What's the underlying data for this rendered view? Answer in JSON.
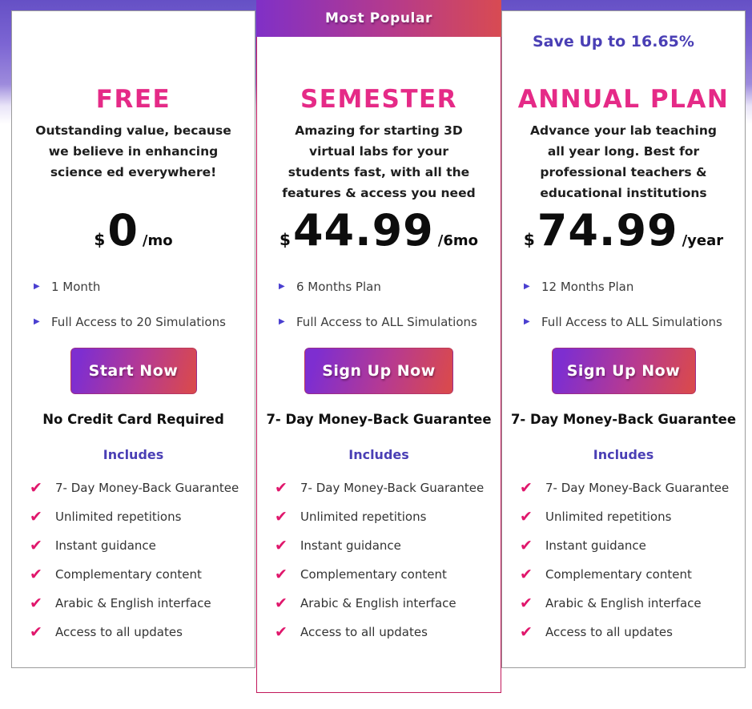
{
  "includes_heading": "Includes",
  "includes_items": [
    "7- Day Money-Back Guarantee",
    "Unlimited repetitions",
    "Instant guidance",
    "Complementary content",
    "Arabic & English interface",
    "Access to all updates"
  ],
  "plans": [
    {
      "id": "free",
      "title": "FREE",
      "description": "Outstanding value, because we believe in enhancing science ed everywhere!",
      "price": {
        "currency": "$",
        "amount": "0",
        "period": "/mo"
      },
      "features": [
        "1 Month",
        "Full Access to 20 Simulations"
      ],
      "cta_label": "Start Now",
      "note": "No Credit Card Required"
    },
    {
      "id": "semester",
      "badge": "Most Popular",
      "title": "SEMESTER",
      "description": "Amazing for starting 3D virtual labs for your students fast, with all the features & access you need",
      "price": {
        "currency": "$",
        "amount": "44.99",
        "period": "/6mo"
      },
      "features": [
        "6 Months Plan",
        "Full Access to ALL Simulations"
      ],
      "cta_label": "Sign Up Now",
      "note": "7- Day Money-Back Guarantee"
    },
    {
      "id": "annual",
      "save_note": "Save Up to 16.65%",
      "title": "ANNUAL PLAN",
      "description": "Advance your lab teaching all year long. Best for professional teachers & educational institutions",
      "price": {
        "currency": "$",
        "amount": "74.99",
        "period": "/year"
      },
      "features": [
        "12 Months Plan",
        "Full Access to ALL Simulations"
      ],
      "cta_label": "Sign Up Now",
      "note": "7- Day Money-Back Guarantee"
    }
  ],
  "colors": {
    "title_pink": "#e52a87",
    "indigo": "#4a3fb5",
    "check_pink": "#e0176c",
    "bullet_indigo": "#4a3fd0",
    "gradient_start": "#7e2ed0",
    "gradient_end": "#d8494f",
    "card_border_gray": "#9b9b9b",
    "card_border_pink": "#c2185b",
    "background_purple": "#7c65d3"
  }
}
